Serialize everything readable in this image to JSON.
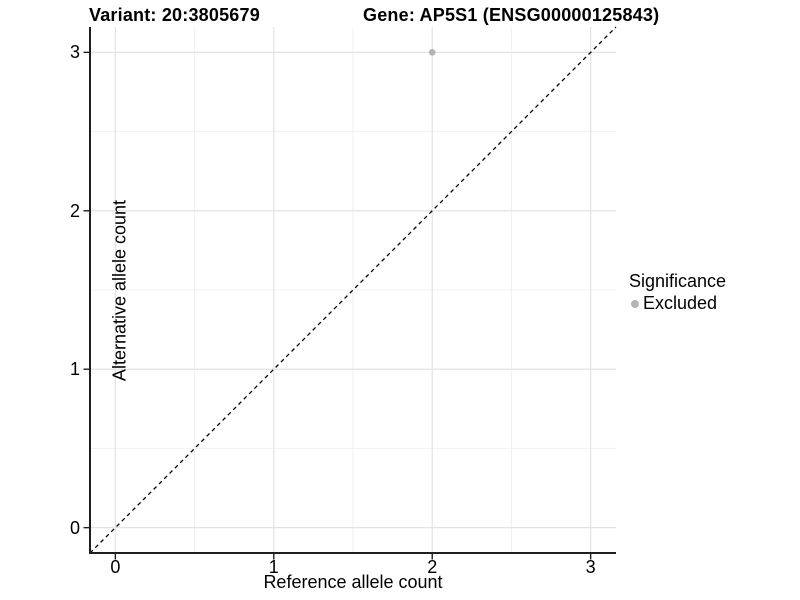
{
  "theme": {
    "background": "#ffffff",
    "grid_major_color": "#e3e3e3",
    "grid_minor_color": "#f0f0f0",
    "axis_line_color": "#1f1f1f",
    "tick_mark_color": "#1f1f1f",
    "text_color": "#000000",
    "point_color": "#b3b3b3",
    "reference_line_color": "#000000"
  },
  "chart_data": {
    "type": "scatter",
    "title_left": "Variant: 20:3805679",
    "title_right": "Gene: AP5S1 (ENSG00000125843)",
    "xlabel": "Reference allele count",
    "ylabel": "Alternative allele count",
    "xlim": [
      -0.16,
      3.16
    ],
    "ylim": [
      -0.16,
      3.16
    ],
    "x_ticks": [
      0,
      1,
      2,
      3
    ],
    "y_ticks": [
      0,
      1,
      2,
      3
    ],
    "x_minor_ticks": [
      0.5,
      1.5,
      2.5
    ],
    "y_minor_ticks": [
      0.5,
      1.5,
      2.5
    ],
    "grid": "major+minor",
    "points": [
      {
        "x": 2,
        "y": 3,
        "significance": "Excluded",
        "color": "#b3b3b3"
      }
    ],
    "reference_line": {
      "type": "identity",
      "style": "dashed",
      "color": "#000000"
    },
    "legend": {
      "title": "Significance",
      "position": "right",
      "entries": [
        {
          "label": "Excluded",
          "color": "#b3b3b3",
          "marker": "circle"
        }
      ]
    }
  }
}
